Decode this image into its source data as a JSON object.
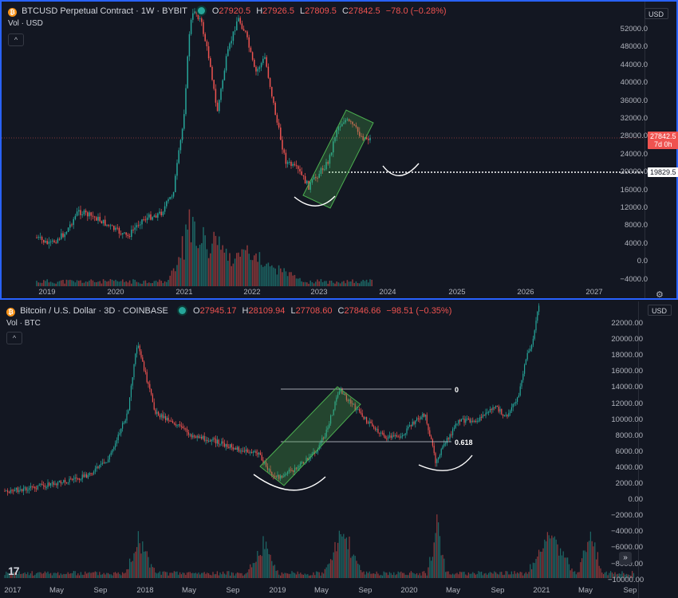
{
  "top": {
    "symbol": "BTCUSD Perpetual Contract · 1W · BYBIT",
    "o_label": "O",
    "o": "27920.5",
    "h_label": "H",
    "h": "27926.5",
    "l_label": "L",
    "l": "27809.5",
    "c_label": "C",
    "c": "27842.5",
    "change": "−78.0 (−0.28%)",
    "vol": "Vol · USD",
    "currency": "USD",
    "price_tag": "27842.5",
    "countdown": "7d 0h",
    "level_tag": "19829.5",
    "y_ticks": [
      "52000.0",
      "48000.0",
      "44000.0",
      "40000.0",
      "36000.0",
      "32000.0",
      "28000.0",
      "24000.0",
      "20000.0",
      "16000.0",
      "12000.0",
      "8000.0",
      "4000.0",
      "0.0",
      "−4000.0"
    ],
    "x_ticks": [
      "2019",
      "2020",
      "2021",
      "2022",
      "2023",
      "2024",
      "2025",
      "2026",
      "2027"
    ]
  },
  "bottom": {
    "symbol": "Bitcoin / U.S. Dollar · 3D · COINBASE",
    "o_label": "O",
    "o": "27945.17",
    "h_label": "H",
    "h": "28109.94",
    "l_label": "L",
    "l": "27708.60",
    "c_label": "C",
    "c": "27846.66",
    "change": "−98.51 (−0.35%)",
    "vol": "Vol · BTC",
    "currency": "USD",
    "fib_0": "0",
    "fib_618": "0.618",
    "y_ticks": [
      "22000.00",
      "20000.00",
      "18000.00",
      "16000.00",
      "14000.00",
      "12000.00",
      "10000.00",
      "8000.00",
      "6000.00",
      "4000.00",
      "2000.00",
      "0.00",
      "−2000.00",
      "−4000.00",
      "−6000.00",
      "−8000.00",
      "−10000.00"
    ],
    "x_ticks": [
      "2017",
      "May",
      "Sep",
      "2018",
      "May",
      "Sep",
      "2019",
      "May",
      "Sep",
      "2020",
      "May",
      "Sep",
      "2021",
      "May",
      "Sep"
    ]
  },
  "colors": {
    "up": "#26a69a",
    "down": "#ef5350",
    "bg": "#131722",
    "accent": "#2962ff",
    "box": "#4caf50"
  },
  "icons": {
    "coin": "bitcoin-icon",
    "live": "live-dot-icon",
    "settings": "gear-icon",
    "scroll": "double-chevron-right-icon",
    "logo": "tradingview-logo"
  }
}
